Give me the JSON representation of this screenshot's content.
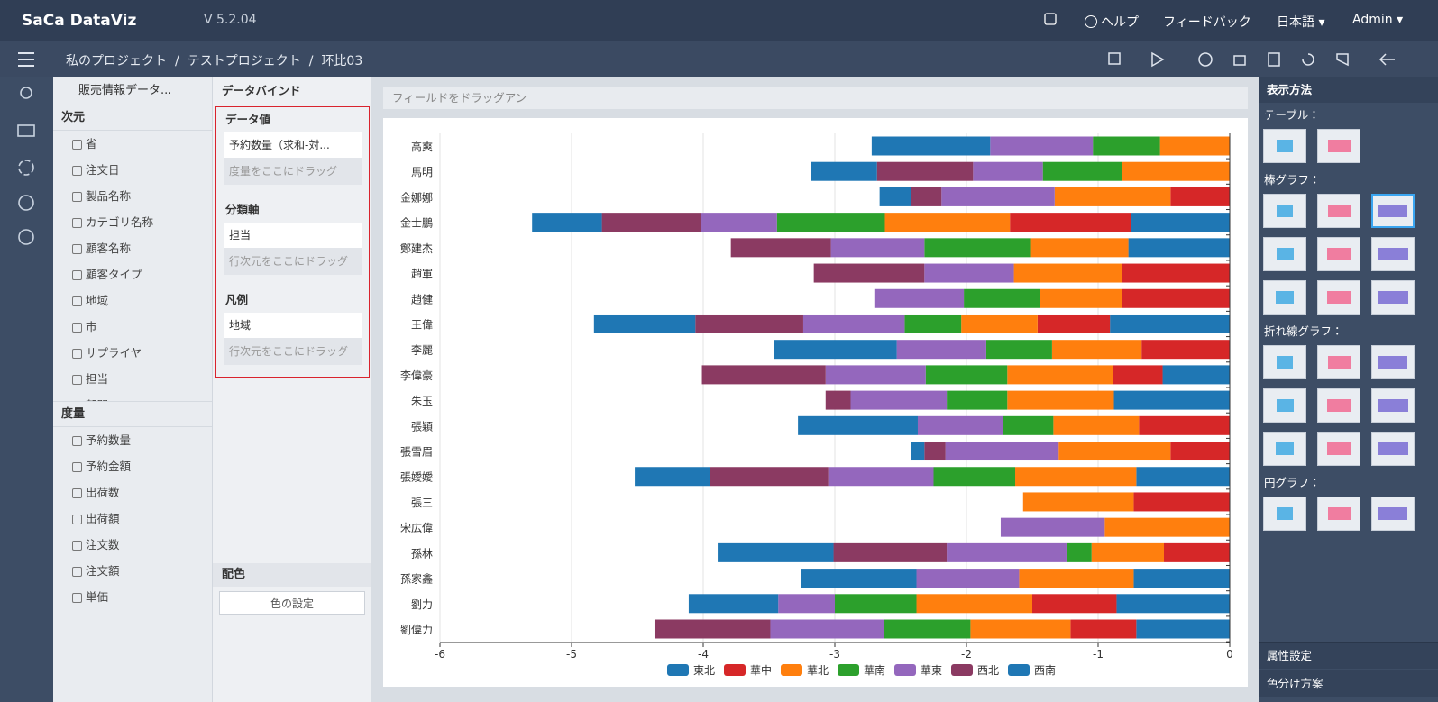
{
  "header": {
    "logo": "SaCa DataViz",
    "version": "V 5.2.04",
    "help": "ヘルプ",
    "feedback": "フィードバック",
    "language": "日本語",
    "user": "Admin"
  },
  "breadcrumb": {
    "items": [
      "私のプロジェクト",
      "テストプロジェクト",
      "环比03"
    ],
    "separator": "/"
  },
  "data_panel": {
    "title": "販売情報データ...",
    "dimensions_title": "次元",
    "dimensions": [
      "省",
      "注文日",
      "製品名称",
      "カテゴリ名称",
      "顧客名称",
      "顧客タイプ",
      "地域",
      "市",
      "サプライヤ",
      "担当",
      "部門"
    ],
    "measures_title": "度量",
    "measures": [
      "予約数量",
      "予約金額",
      "出荷数",
      "出荷額",
      "注文数",
      "注文額",
      "単価"
    ]
  },
  "bind_panel": {
    "title": "データバインド",
    "value_title": "データ値",
    "value_field": "予約数量（求和-対...",
    "value_placeholder": "度量をここにドラッグ",
    "category_title": "分類軸",
    "category_field": "担当",
    "category_placeholder": "行次元をここにドラッグ",
    "legend_title": "凡例",
    "legend_field": "地域",
    "legend_placeholder": "行次元をここにドラッグ",
    "color_title": "配色",
    "color_button": "色の設定"
  },
  "canvas": {
    "drop_hint": "フィールドをドラッグアン"
  },
  "chart_panel": {
    "title": "表示方法",
    "groups": [
      "テーブル：",
      "棒グラフ：",
      "折れ線グラフ：",
      "円グラフ："
    ],
    "footer": [
      "属性設定",
      "色分け方案"
    ]
  },
  "chart_data": {
    "type": "stacked-barh",
    "categories": [
      "高爽",
      "馬明",
      "金娜娜",
      "金士鵬",
      "鄭建杰",
      "趙軍",
      "趙健",
      "王偉",
      "李麗",
      "李偉豪",
      "朱玉",
      "張穎",
      "張雪眉",
      "張嬡嬡",
      "張三",
      "宋広偉",
      "孫林",
      "孫家鑫",
      "劉力",
      "劉偉力"
    ],
    "series": [
      {
        "name": "東北",
        "color": "#1f77b4",
        "values": [
          null,
          null,
          null,
          -0.75,
          -0.77,
          null,
          null,
          -0.91,
          null,
          -0.51,
          -0.88,
          null,
          null,
          -0.71,
          null,
          null,
          null,
          -0.73,
          -0.86,
          -0.71
        ]
      },
      {
        "name": "華中",
        "color": "#d62728",
        "values": [
          null,
          null,
          -0.45,
          -0.92,
          null,
          -0.82,
          -0.82,
          -0.55,
          -0.67,
          -0.38,
          null,
          -0.69,
          -0.45,
          null,
          -0.73,
          null,
          -0.5,
          null,
          -0.64,
          -0.5
        ]
      },
      {
        "name": "華北",
        "color": "#ff7f0e",
        "values": [
          -0.53,
          -0.82,
          -0.88,
          -0.95,
          -0.74,
          -0.82,
          -0.62,
          -0.58,
          -0.68,
          -0.8,
          -0.81,
          -0.65,
          -0.85,
          -0.92,
          -0.84,
          -0.95,
          -0.55,
          -0.87,
          -0.88,
          -0.76
        ]
      },
      {
        "name": "華南",
        "color": "#2ca02c",
        "values": [
          -0.51,
          -0.6,
          null,
          -0.82,
          -0.81,
          null,
          -0.58,
          -0.43,
          -0.5,
          -0.62,
          -0.46,
          -0.38,
          null,
          -0.62,
          null,
          null,
          -0.19,
          null,
          -0.62,
          -0.66
        ]
      },
      {
        "name": "華東",
        "color": "#9467bd",
        "values": [
          -0.78,
          -0.53,
          -0.86,
          -0.58,
          -0.71,
          -0.68,
          -0.68,
          -0.77,
          -0.68,
          -0.76,
          -0.73,
          -0.65,
          -0.86,
          -0.8,
          null,
          -0.79,
          -0.91,
          -0.78,
          -0.43,
          -0.86
        ]
      },
      {
        "name": "西北",
        "color": "#8b3a62",
        "values": [
          null,
          -0.73,
          -0.23,
          -0.75,
          -0.76,
          -0.84,
          null,
          -0.82,
          null,
          -0.94,
          -0.19,
          null,
          -0.16,
          -0.9,
          null,
          null,
          -0.86,
          null,
          null,
          -0.88
        ]
      },
      {
        "name": "西南",
        "color": "#1f77b4",
        "values": [
          -0.9,
          -0.5,
          -0.24,
          -0.53,
          null,
          null,
          null,
          -0.77,
          -0.93,
          null,
          null,
          -0.91,
          -0.1,
          -0.57,
          null,
          null,
          -0.88,
          -0.88,
          -0.68,
          null
        ]
      }
    ],
    "xlim": [
      -6,
      0
    ],
    "xticks": [
      -6,
      -5,
      -4,
      -3,
      -2,
      -1,
      0
    ],
    "grid": true
  }
}
